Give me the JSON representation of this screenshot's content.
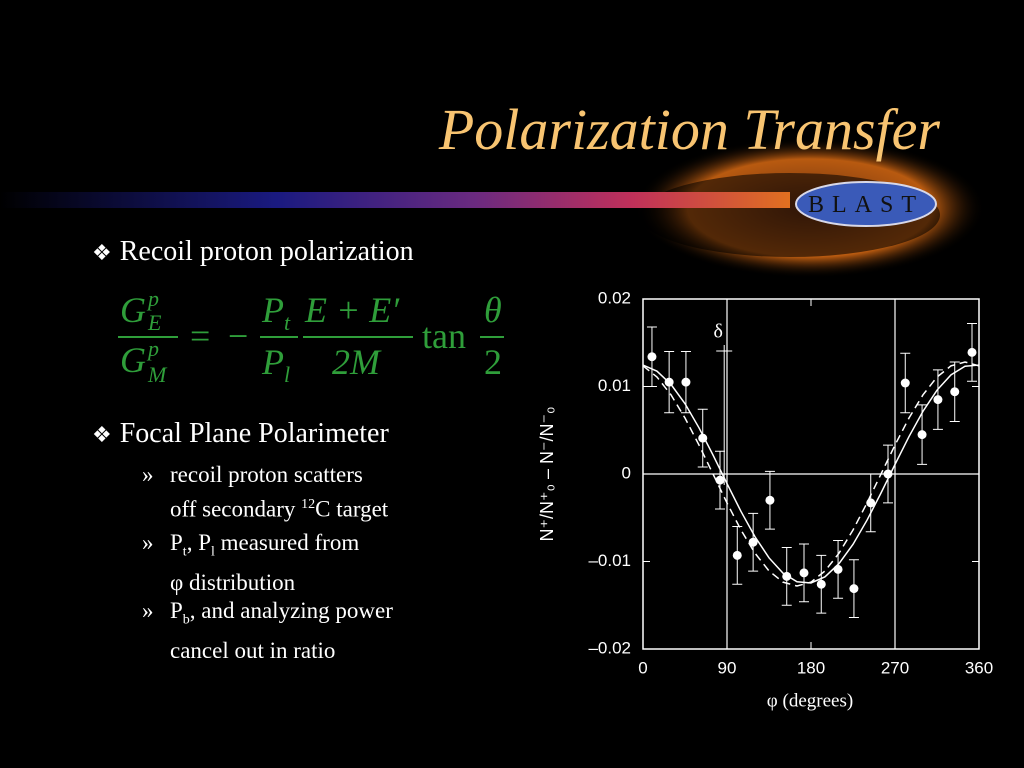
{
  "slide": {
    "title": "Polarization Transfer",
    "logo": "BLAST",
    "bullets": [
      {
        "marker": "❖",
        "text": "Recoil proton polarization"
      },
      {
        "marker": "❖",
        "text": "Focal Plane Polarimeter"
      }
    ],
    "equation": {
      "parts": [
        "G",
        "p",
        "E",
        "G",
        "p",
        "M",
        "=",
        "−",
        "P",
        "t",
        "P",
        "l",
        "E + E′",
        "2M",
        "tan",
        "θ",
        "2"
      ]
    },
    "sub_bullets": [
      {
        "marker": "»",
        "parts": [
          "recoil proton scatters",
          "off secondary ",
          "12",
          "C target"
        ]
      },
      {
        "marker": "»",
        "parts": [
          "P",
          "t",
          ", P",
          "l",
          " measured from",
          "φ distribution"
        ]
      },
      {
        "marker": "»",
        "parts": [
          "P",
          "b",
          ", and analyzing power",
          "cancel out in ratio"
        ]
      }
    ]
  },
  "chart_data": {
    "type": "scatter",
    "xlabel": "φ (degrees)",
    "ylabel": "N⁺/N⁺₀ – N⁻/N⁻₀",
    "xlim": [
      0,
      360
    ],
    "xticks": [
      0,
      90,
      180,
      270,
      360
    ],
    "ylim": [
      -0.02,
      0.02
    ],
    "yticks": [
      {
        "value": -0.02,
        "label": "–0.02"
      },
      {
        "value": -0.01,
        "label": "–0.01"
      },
      0,
      0.01,
      0.02
    ],
    "vlines": [
      90,
      270
    ],
    "hlines": [
      0
    ],
    "annotations": [
      {
        "text": "δ",
        "x": 87
      }
    ],
    "series": [
      {
        "type": "scatter",
        "color": "#ffffff",
        "x": [
          9.6,
          28,
          46,
          64,
          82.5,
          101,
          118,
          136,
          154,
          172.5,
          191,
          209,
          226,
          244,
          262.5,
          281,
          299,
          316,
          334,
          352.5
        ],
        "values": [
          0.0134,
          0.0105,
          0.0105,
          0.0041,
          -0.0007,
          -0.0093,
          -0.0078,
          -0.003,
          -0.0117,
          -0.0113,
          -0.0126,
          -0.0109,
          -0.0131,
          -0.0033,
          0,
          0.0104,
          0.0045,
          0.0085,
          0.0094,
          0.0139
        ],
        "errors": [
          0.0034,
          0.0035,
          0.0035,
          0.0033,
          0.0033,
          0.0033,
          0.0033,
          0.0033,
          0.0033,
          0.0033,
          0.0033,
          0.0033,
          0.0033,
          0.0033,
          0.0033,
          0.0034,
          0.0034,
          0.0034,
          0.0034,
          0.0033
        ]
      },
      {
        "type": "line",
        "style": "solid",
        "color": "#ffffff",
        "x": [
          0,
          15,
          30,
          45,
          60,
          75,
          90,
          105,
          120,
          135,
          150,
          165,
          180,
          195,
          210,
          225,
          240,
          255,
          270,
          285,
          300,
          315,
          330,
          345,
          360
        ],
        "values": [
          0.01245,
          0.01175,
          0.01024,
          0.00804,
          0.00528,
          0.00217,
          -0.00109,
          -0.00428,
          -0.00717,
          -0.00958,
          -0.01133,
          -0.01231,
          -0.01245,
          -0.01175,
          -0.01024,
          -0.00804,
          -0.00528,
          -0.00217,
          0.00109,
          0.00428,
          0.00717,
          0.00958,
          0.01133,
          0.01231,
          0.01245
        ]
      },
      {
        "type": "line",
        "style": "dashed",
        "color": "#ffffff",
        "x": [
          0,
          15,
          30,
          45,
          60,
          75,
          90,
          105,
          120,
          135,
          150,
          165,
          180,
          195,
          210,
          225,
          240,
          255,
          270,
          285,
          300,
          315,
          330,
          345,
          360
        ],
        "values": [
          0.01236,
          0.01108,
          0.00905,
          0.0064,
          0.00331,
          0,
          -0.00331,
          -0.0064,
          -0.00905,
          -0.01108,
          -0.01236,
          -0.0128,
          -0.01236,
          -0.01108,
          -0.00905,
          -0.0064,
          -0.00331,
          0,
          0.00331,
          0.0064,
          0.00905,
          0.01108,
          0.01236,
          0.0128,
          0.01236
        ]
      }
    ]
  }
}
